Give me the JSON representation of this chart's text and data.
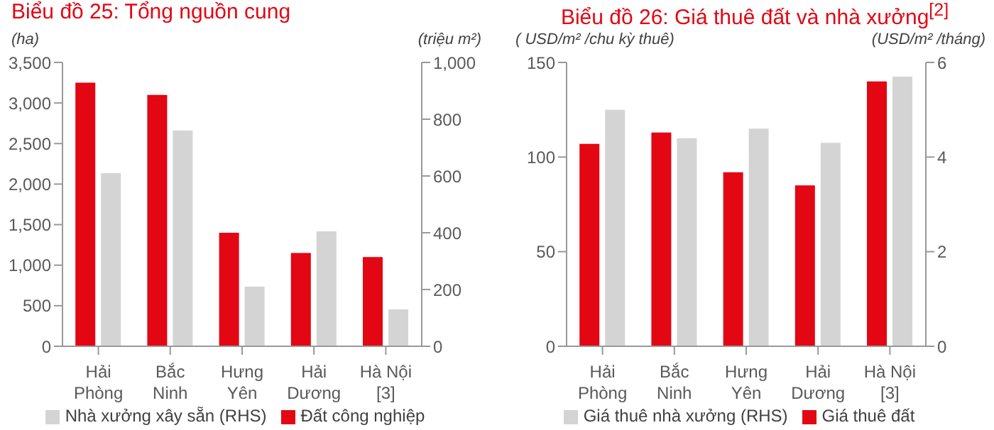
{
  "chart_data": [
    {
      "type": "bar",
      "title": "Biểu đồ 25: Tổng nguồn cung",
      "ylabel": "(ha)",
      "y2label": "(triệu m²)",
      "categories": [
        "Hải Phòng",
        "Bắc Ninh",
        "Hưng Yên",
        "Hải Dương",
        "Hà Nội [3]"
      ],
      "series": [
        {
          "name": "Đất công nghiệp",
          "color": "#e30613",
          "values": [
            3250,
            3100,
            1400,
            1150,
            1100
          ]
        },
        {
          "name": "Nhà xưởng xây sẵn (RHS)",
          "color": "#d4d4d4",
          "values": [
            610,
            760,
            210,
            405,
            130
          ],
          "axis": "y2"
        }
      ],
      "ylim": [
        0,
        3500
      ],
      "yticks": [
        {
          "value": 0,
          "label": "0"
        },
        {
          "value": 500,
          "label": "500"
        },
        {
          "value": 1000,
          "label": "1,000"
        },
        {
          "value": 1500,
          "label": "1,500"
        },
        {
          "value": 2000,
          "label": "2,000"
        },
        {
          "value": 2500,
          "label": "2,500"
        },
        {
          "value": 3000,
          "label": "3,000"
        },
        {
          "value": 3500,
          "label": "3,500"
        }
      ],
      "y2lim": [
        0,
        1000
      ],
      "y2ticks": [
        {
          "value": 0,
          "label": "0"
        },
        {
          "value": 200,
          "label": "200"
        },
        {
          "value": 400,
          "label": "400"
        },
        {
          "value": 600,
          "label": "600"
        },
        {
          "value": 800,
          "label": "800"
        },
        {
          "value": 1000,
          "label": "1,000"
        }
      ],
      "grid": false,
      "legend": "bottom"
    },
    {
      "type": "bar",
      "title": "Biểu đồ 26: Giá thuê đất và nhà xưởng$^{[2]}$",
      "ylabel": "( USD/m² /chu kỳ thuê)",
      "y2label": "(USD/m² /tháng)",
      "categories": [
        "Hải Phòng",
        "Bắc Ninh",
        "Hưng Yên",
        "Hải Dương",
        "Hà Nội [3]"
      ],
      "series": [
        {
          "name": "Giá thuê đất",
          "color": "#e30613",
          "values": [
            107,
            113,
            92,
            85,
            140
          ]
        },
        {
          "name": "Giá thuê nhà xưởng (RHS)",
          "color": "#d4d4d4",
          "values": [
            5.0,
            4.4,
            4.6,
            4.3,
            5.7
          ],
          "axis": "y2"
        }
      ],
      "ylim": [
        0,
        150
      ],
      "yticks": [
        0,
        50,
        100,
        150
      ],
      "y2lim": [
        0,
        6
      ],
      "y2ticks": [
        0,
        2,
        4,
        6
      ],
      "grid": false,
      "legend": "bottom"
    }
  ]
}
